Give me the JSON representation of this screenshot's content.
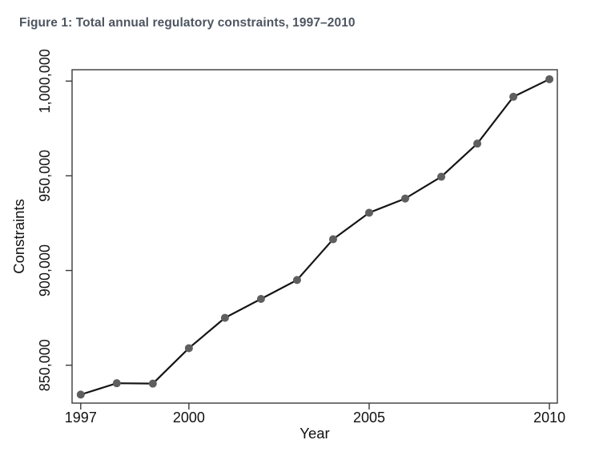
{
  "figure": {
    "title": "Figure 1: Total annual regulatory constraints, 1997–2010"
  },
  "chart_data": {
    "type": "line",
    "title": "Figure 1: Total annual regulatory constraints, 1997–2010",
    "xlabel": "Year",
    "ylabel": "Constraints",
    "x": [
      1997,
      1998,
      1999,
      2000,
      2001,
      2002,
      2003,
      2004,
      2005,
      2006,
      2007,
      2008,
      2009,
      2010
    ],
    "values": [
      834500,
      840500,
      840300,
      859000,
      875000,
      885000,
      895000,
      916500,
      930500,
      938000,
      949500,
      967000,
      991700,
      1001000
    ],
    "series_name": "Total annual regulatory constraints",
    "xlim": [
      1996.76,
      2010.22
    ],
    "ylim": [
      830000,
      1006000
    ],
    "xticks": [
      {
        "value": 1997,
        "label": "1997"
      },
      {
        "value": 2000,
        "label": "2000"
      },
      {
        "value": 2005,
        "label": "2005"
      },
      {
        "value": 2010,
        "label": "2010"
      }
    ],
    "yticks": [
      {
        "value": 850000,
        "label": "850,000"
      },
      {
        "value": 900000,
        "label": "900,000"
      },
      {
        "value": 950000,
        "label": "950,000"
      },
      {
        "value": 1000000,
        "label": "1,000,000"
      }
    ],
    "grid": false,
    "legend_position": "none",
    "colors": {
      "line": "#151515",
      "marker": "#5e5e60",
      "axis": "#3a3a3a",
      "tick_text": "#111111",
      "title_text": "#4d5560",
      "background": "#ffffff"
    }
  }
}
